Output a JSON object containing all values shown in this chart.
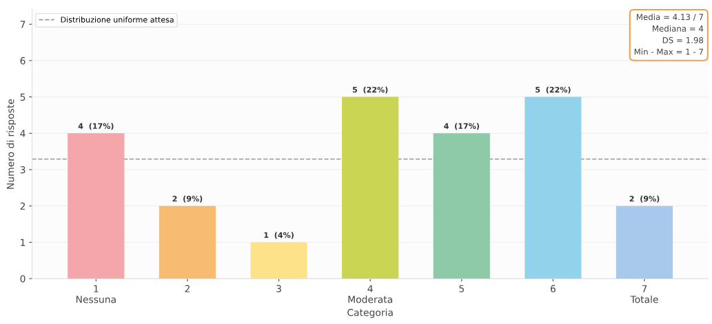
{
  "chart_data": {
    "type": "bar",
    "xlabel": "Categoria",
    "ylabel": "Numero di risposte",
    "categories": [
      "1\nNessuna",
      "2",
      "3",
      "4\nModerata",
      "5",
      "6",
      "7\nTotale"
    ],
    "values": [
      4,
      2,
      1,
      5,
      4,
      5,
      2
    ],
    "colors": [
      "#f4a6aa",
      "#f7bb72",
      "#fde28a",
      "#cad653",
      "#8fcaa8",
      "#92d2ea",
      "#a8c8ec"
    ],
    "value_labels": [
      "4  (17%)",
      "2  (9%)",
      "1  (4%)",
      "5  (22%)",
      "4  (17%)",
      "5  (22%)",
      "2  (9%)"
    ],
    "ylim": [
      0,
      7.4
    ],
    "yticks": [
      0,
      1,
      2,
      3,
      4,
      5,
      6,
      7
    ],
    "grid": "y",
    "ref_lines": [
      {
        "axis": "y",
        "value": 3.29,
        "label": "Distribuzione uniforme attesa",
        "color": "#999999",
        "line_style": "dashed"
      }
    ],
    "legend": "top left",
    "annotations": [
      "Media = 4.13 / 7\nMediana = 4\nDS = 1.98\nMin - Max = 1 - 7"
    ]
  }
}
